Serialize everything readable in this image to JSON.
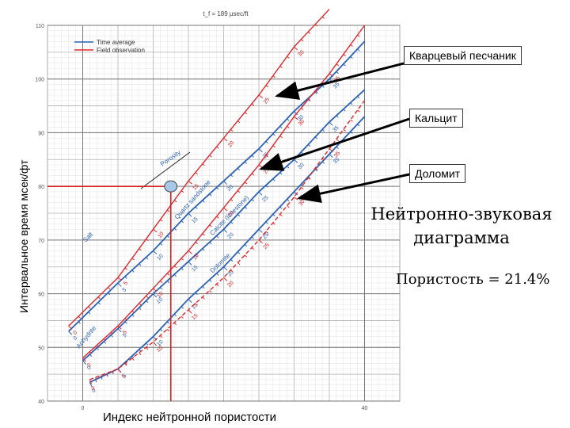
{
  "chart_data": {
    "type": "line",
    "title": "t_f = 189 µsec/ft",
    "xlabel": "Индекс нейтронной пористости",
    "ylabel": "Интервальное время мсек/фт",
    "xlim": [
      -5,
      45
    ],
    "ylim": [
      40,
      110
    ],
    "x_ticks": [
      0,
      40
    ],
    "y_ticks": [
      40,
      50,
      60,
      70,
      80,
      90,
      100,
      110
    ],
    "grid": true,
    "legend": {
      "position": "top-left",
      "entries": [
        {
          "label": "Time average",
          "color": "#2b62b6"
        },
        {
          "label": "Field observation",
          "color": "#e0262b"
        }
      ]
    },
    "series": [
      {
        "name": "Quartz sandstone",
        "style": "Time average",
        "color": "#2b62b6",
        "x": [
          -2,
          5,
          10,
          15,
          20,
          25,
          30,
          35,
          40
        ],
        "y": [
          53,
          62,
          68,
          75,
          81,
          87,
          94,
          100,
          107
        ]
      },
      {
        "name": "Calcite (limestone)",
        "style": "Time average",
        "color": "#2b62b6",
        "x": [
          0,
          5,
          10,
          15,
          20,
          25,
          30,
          35,
          40
        ],
        "y": [
          47.5,
          53.5,
          60,
          66,
          72,
          79,
          85,
          92,
          98
        ]
      },
      {
        "name": "Dolomite",
        "style": "Time average",
        "color": "#2b62b6",
        "x": [
          1,
          5,
          10,
          15,
          20,
          25,
          30,
          35,
          40
        ],
        "y": [
          43.5,
          46,
          52,
          59,
          65,
          72,
          79,
          86,
          93
        ]
      },
      {
        "name": "Quartz sandstone",
        "style": "Field observation",
        "color": "#e0262b",
        "x": [
          -2,
          5,
          10,
          15,
          20,
          25,
          30,
          35
        ],
        "y": [
          54,
          63,
          72,
          81,
          89,
          97,
          106,
          113
        ]
      },
      {
        "name": "Calcite (limestone)",
        "style": "Field observation",
        "color": "#e0262b",
        "x": [
          0,
          5,
          10,
          15,
          20,
          25,
          30,
          35,
          40
        ],
        "y": [
          48,
          54,
          61,
          68,
          76,
          84,
          93,
          101,
          110
        ]
      },
      {
        "name": "Dolomite",
        "style": "Field observation",
        "color": "#e0262b",
        "x": [
          1,
          5,
          10,
          15,
          20,
          25,
          30,
          35,
          40
        ],
        "y": [
          44,
          46,
          51,
          57,
          63,
          70,
          78,
          87,
          96
        ]
      }
    ],
    "porosity_reading": {
      "x": 12.5,
      "y": 80
    },
    "curve_labels": [
      "Salt",
      "Anhydrite",
      "Quartz sandstone",
      "Calcite (limestone)",
      "Dolomite",
      "Porosity"
    ],
    "curve_tick_labels": [
      "0",
      "5",
      "10",
      "15",
      "20",
      "25",
      "30",
      "35",
      "40"
    ],
    "annotations": [
      {
        "text": "Кварцевый песчаник",
        "target": "Quartz sandstone",
        "arrow_color": "#000000"
      },
      {
        "text": "Кальцит",
        "target": "Calcite (limestone)",
        "arrow_color": "#000000"
      },
      {
        "text": "Доломит",
        "target": "Dolomite",
        "arrow_color": "#000000"
      }
    ]
  },
  "notes": {
    "chart_name": "Нейтронно-звуковая диаграмма",
    "chart_name_line1": "Нейтронно-звуковая",
    "chart_name_line2": "диаграмма",
    "porosity_result": "Пористость = 21.4%"
  },
  "colors": {
    "time_average": "#2b62b6",
    "field_observation": "#e0262b",
    "grid_major": "#b0b0b0",
    "grid_minor": "#dcdcdc",
    "reading_marker": "#a8c8e8"
  }
}
